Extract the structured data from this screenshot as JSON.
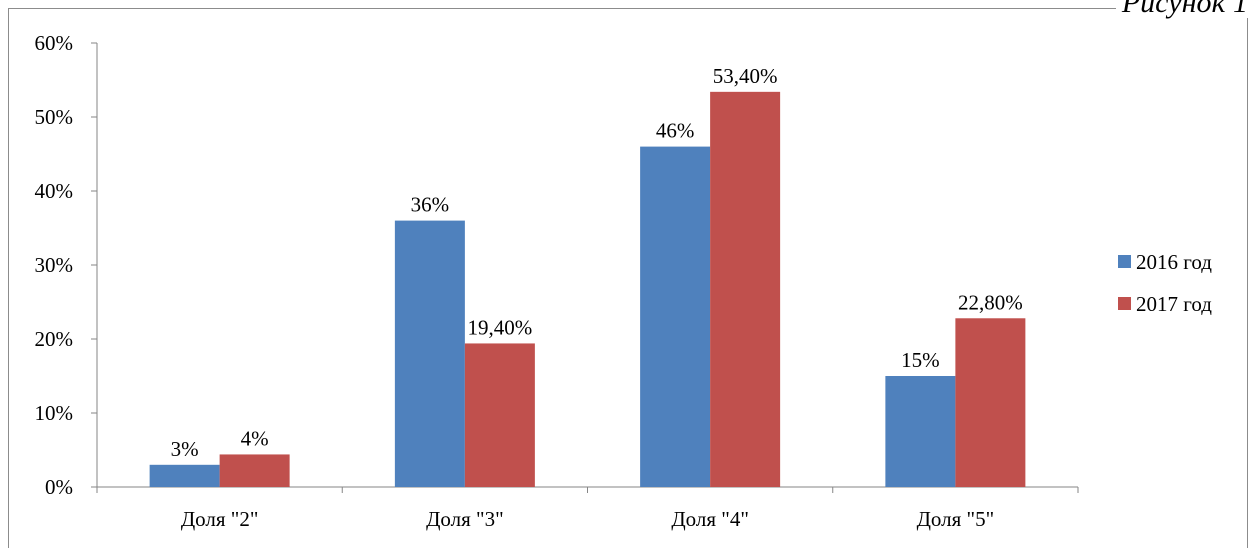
{
  "figure_caption": "Рисунок 1",
  "chart_data": {
    "type": "bar",
    "categories": [
      "Доля \"2\"",
      "Доля \"3\"",
      "Доля \"4\"",
      "Доля \"5\""
    ],
    "series": [
      {
        "name": "2016 год",
        "values": [
          3,
          36,
          46,
          15
        ],
        "labels": [
          "3%",
          "36%",
          "46%",
          "15%"
        ],
        "color": "#4f81bd"
      },
      {
        "name": "2017 год",
        "values": [
          4.4,
          19.4,
          53.4,
          22.8
        ],
        "labels": [
          "4%",
          "19,40%",
          "53,40%",
          "22,80%"
        ],
        "color": "#c0504d"
      }
    ],
    "y_ticks": [
      "0%",
      "10%",
      "20%",
      "30%",
      "40%",
      "50%",
      "60%"
    ],
    "ylim": [
      0,
      60
    ],
    "grid": false,
    "legend_position": "right"
  }
}
